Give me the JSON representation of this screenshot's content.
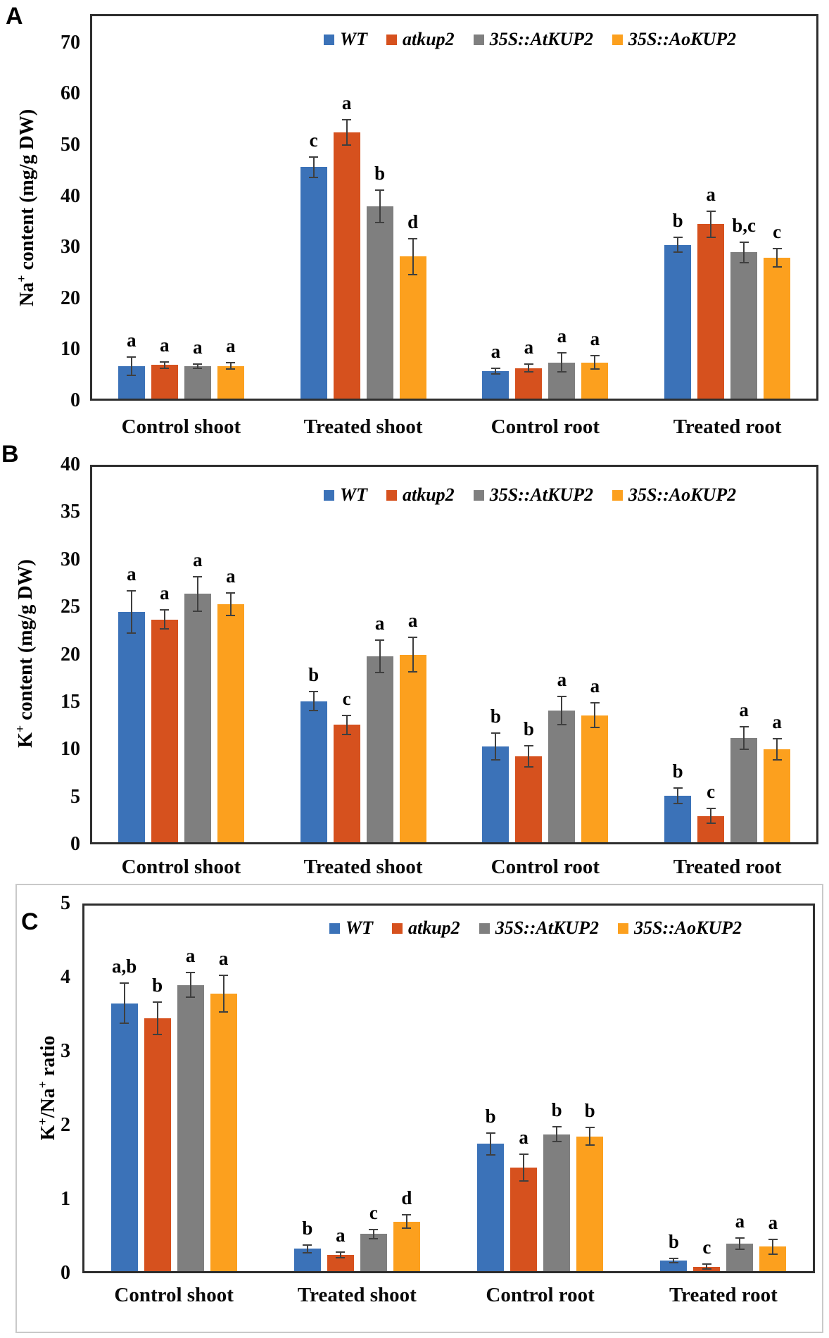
{
  "figure": {
    "background": "#ffffff",
    "series_colors": [
      "#3B72B8",
      "#D6511E",
      "#7F7F7F",
      "#FCA01E"
    ],
    "error_bar_color": "#3f3f3f",
    "frame_color": "#2e2e2e"
  },
  "chart_data": [
    {
      "type": "bar",
      "panel_label": "A",
      "title": "",
      "ylabel": "Na^+ content (mg/g DW)",
      "xlabel": "",
      "grid": false,
      "legend_position": "top-right",
      "ylim": [
        0,
        70
      ],
      "ytick_step": 10,
      "yticks": [
        "0",
        "10",
        "20",
        "30",
        "40",
        "50",
        "60",
        "70"
      ],
      "categories": [
        "Control shoot",
        "Treated shoot",
        "Control root",
        "Treated root"
      ],
      "series": [
        {
          "name": "WT",
          "color": "#3B72B8",
          "values": [
            6.8,
            45.7,
            5.8,
            30.5
          ],
          "errors": [
            1.8,
            2.0,
            0.5,
            1.5
          ],
          "letters": [
            "a",
            "c",
            "a",
            "b"
          ]
        },
        {
          "name": "atkup2",
          "color": "#D6511E",
          "values": [
            7.0,
            52.5,
            6.4,
            34.5
          ],
          "errors": [
            0.6,
            2.5,
            0.8,
            2.5
          ],
          "letters": [
            "a",
            "a",
            "a",
            "a"
          ]
        },
        {
          "name": "35S::AtKUP2",
          "color": "#7F7F7F",
          "values": [
            6.8,
            38.0,
            7.5,
            29.0
          ],
          "errors": [
            0.4,
            3.2,
            1.8,
            2.0
          ],
          "letters": [
            "a",
            "b",
            "a",
            "b,c"
          ]
        },
        {
          "name": "35S::AoKUP2",
          "color": "#FCA01E",
          "values": [
            6.8,
            28.2,
            7.5,
            28.0
          ],
          "errors": [
            0.6,
            3.5,
            1.3,
            1.8
          ],
          "letters": [
            "a",
            "d",
            "a",
            "c"
          ]
        }
      ]
    },
    {
      "type": "bar",
      "panel_label": "B",
      "title": "",
      "ylabel": "K^+ content (mg/g DW)",
      "xlabel": "",
      "grid": false,
      "legend_position": "top-right",
      "ylim": [
        0,
        40
      ],
      "ytick_step": 5,
      "yticks": [
        "0",
        "5",
        "10",
        "15",
        "20",
        "25",
        "30",
        "35",
        "40"
      ],
      "categories": [
        "Control shoot",
        "Treated shoot",
        "Control root",
        "Treated root"
      ],
      "series": [
        {
          "name": "WT",
          "color": "#3B72B8",
          "values": [
            24.5,
            15.1,
            10.3,
            5.1
          ],
          "errors": [
            2.2,
            1.0,
            1.4,
            0.8
          ],
          "letters": [
            "a",
            "b",
            "b",
            "b"
          ]
        },
        {
          "name": "atkup2",
          "color": "#D6511E",
          "values": [
            23.7,
            12.6,
            9.3,
            3.0
          ],
          "errors": [
            1.0,
            1.0,
            1.1,
            0.8
          ],
          "letters": [
            "a",
            "c",
            "b",
            "c"
          ]
        },
        {
          "name": "35S::AtKUP2",
          "color": "#7F7F7F",
          "values": [
            26.4,
            19.8,
            14.1,
            11.2
          ],
          "errors": [
            1.8,
            1.7,
            1.5,
            1.2
          ],
          "letters": [
            "a",
            "a",
            "a",
            "a"
          ]
        },
        {
          "name": "35S::AoKUP2",
          "color": "#FCA01E",
          "values": [
            25.3,
            20.0,
            13.6,
            10.0
          ],
          "errors": [
            1.2,
            1.8,
            1.3,
            1.1
          ],
          "letters": [
            "a",
            "a",
            "a",
            "a"
          ]
        }
      ]
    },
    {
      "type": "bar",
      "panel_label": "C",
      "title": "",
      "ylabel": "K^+/Na^+ ratio",
      "xlabel": "",
      "grid": false,
      "legend_position": "top-right",
      "ylim": [
        0,
        5
      ],
      "ytick_step": 1,
      "yticks": [
        "0",
        "1",
        "2",
        "3",
        "4",
        "5"
      ],
      "categories": [
        "Control shoot",
        "Treated shoot",
        "Control root",
        "Treated root"
      ],
      "series": [
        {
          "name": "WT",
          "color": "#3B72B8",
          "values": [
            3.65,
            0.33,
            1.75,
            0.17
          ],
          "errors": [
            0.27,
            0.05,
            0.15,
            0.03
          ],
          "letters": [
            "a,b",
            "b",
            "b",
            "b"
          ]
        },
        {
          "name": "atkup2",
          "color": "#D6511E",
          "values": [
            3.45,
            0.25,
            1.43,
            0.09
          ],
          "errors": [
            0.22,
            0.04,
            0.18,
            0.03
          ],
          "letters": [
            "b",
            "a",
            "a",
            "c"
          ]
        },
        {
          "name": "35S::AtKUP2",
          "color": "#7F7F7F",
          "values": [
            3.9,
            0.53,
            1.88,
            0.4
          ],
          "errors": [
            0.17,
            0.06,
            0.1,
            0.08
          ],
          "letters": [
            "a",
            "c",
            "b",
            "a"
          ]
        },
        {
          "name": "35S::AoKUP2",
          "color": "#FCA01E",
          "values": [
            3.78,
            0.7,
            1.85,
            0.36
          ],
          "errors": [
            0.25,
            0.09,
            0.12,
            0.1
          ],
          "letters": [
            "a",
            "d",
            "b",
            "a"
          ]
        }
      ]
    }
  ]
}
